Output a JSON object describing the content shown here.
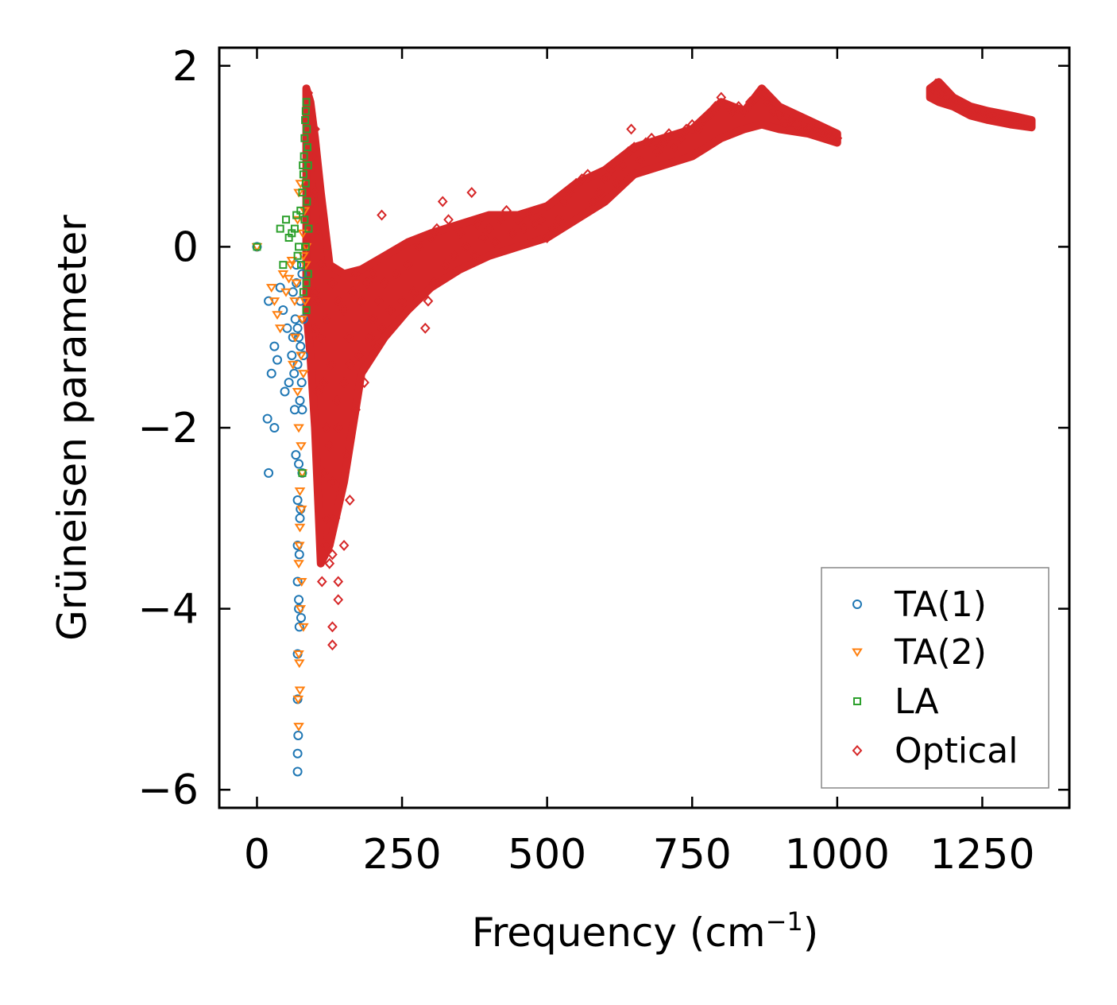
{
  "chart_data": {
    "type": "scatter",
    "title": "",
    "xlabel": "Frequency (cm",
    "xlabel_sup": "−1",
    "xlabel_close": ")",
    "ylabel": "Grüneisen parameter",
    "xlim": [
      -65,
      1400
    ],
    "ylim": [
      -6.2,
      2.2
    ],
    "xticks": [
      0,
      250,
      500,
      750,
      1000,
      1250
    ],
    "xtick_labels": [
      "0",
      "250",
      "500",
      "750",
      "1000",
      "1250"
    ],
    "yticks": [
      -6,
      -4,
      -2,
      0,
      2
    ],
    "ytick_labels": [
      "−6",
      "−4",
      "−2",
      "0",
      "2"
    ],
    "grid": false,
    "legend_position": "bottom-right",
    "series": [
      {
        "name": "TA(1)",
        "marker": "circle",
        "color": "#1f77b4",
        "points": [
          [
            0,
            0
          ],
          [
            20,
            -0.6
          ],
          [
            25,
            -1.4
          ],
          [
            30,
            -1.1
          ],
          [
            35,
            -1.25
          ],
          [
            40,
            -0.45
          ],
          [
            45,
            -0.7
          ],
          [
            48,
            -1.6
          ],
          [
            52,
            -0.9
          ],
          [
            55,
            -1.5
          ],
          [
            60,
            -1.2
          ],
          [
            62,
            -0.5
          ],
          [
            65,
            -1.8
          ],
          [
            67,
            -2.3
          ],
          [
            68,
            -0.2
          ],
          [
            70,
            -0.9
          ],
          [
            70,
            -1.3
          ],
          [
            70,
            -2.8
          ],
          [
            70,
            -3.3
          ],
          [
            70,
            -3.7
          ],
          [
            70,
            -4.5
          ],
          [
            70,
            -5.0
          ],
          [
            70,
            -5.6
          ],
          [
            70,
            -5.8
          ],
          [
            72,
            -1.0
          ],
          [
            72,
            -2.4
          ],
          [
            72,
            -4.0
          ],
          [
            73,
            -3.4
          ],
          [
            74,
            -1.7
          ],
          [
            75,
            -0.6
          ],
          [
            75,
            -1.1
          ],
          [
            75,
            -2.9
          ],
          [
            76,
            -4.1
          ],
          [
            77,
            -1.5
          ],
          [
            78,
            -0.3
          ],
          [
            78,
            -1.8
          ],
          [
            78,
            -2.5
          ],
          [
            80,
            -1.2
          ],
          [
            80,
            -0.8
          ],
          [
            18,
            -1.9
          ],
          [
            20,
            -2.5
          ],
          [
            30,
            -2.0
          ],
          [
            62,
            -1.0
          ],
          [
            64,
            -1.4
          ],
          [
            66,
            -0.8
          ],
          [
            68,
            -0.4
          ],
          [
            71,
            -5.4
          ],
          [
            72,
            -3.9
          ],
          [
            73,
            -4.2
          ],
          [
            74,
            -3.0
          ]
        ]
      },
      {
        "name": "TA(2)",
        "marker": "triangle",
        "color": "#ff7f0e",
        "points": [
          [
            0,
            0
          ],
          [
            25,
            -0.45
          ],
          [
            30,
            -0.6
          ],
          [
            35,
            -0.75
          ],
          [
            40,
            -0.9
          ],
          [
            45,
            -0.3
          ],
          [
            50,
            -0.5
          ],
          [
            55,
            -0.35
          ],
          [
            58,
            -0.2
          ],
          [
            60,
            -0.15
          ],
          [
            62,
            -1.3
          ],
          [
            65,
            -0.6
          ],
          [
            66,
            -1.0
          ],
          [
            68,
            -0.4
          ],
          [
            70,
            -1.6
          ],
          [
            70,
            0.3
          ],
          [
            72,
            -2.0
          ],
          [
            72,
            0.6
          ],
          [
            72,
            -3.5
          ],
          [
            72,
            -4.5
          ],
          [
            72,
            -5.3
          ],
          [
            73,
            -4.6
          ],
          [
            74,
            -2.7
          ],
          [
            74,
            -3.1
          ],
          [
            75,
            -4.0
          ],
          [
            75,
            0.7
          ],
          [
            76,
            -1.2
          ],
          [
            76,
            -2.2
          ],
          [
            77,
            -3.7
          ],
          [
            78,
            -0.8
          ],
          [
            78,
            -2.5
          ],
          [
            79,
            0.15
          ],
          [
            80,
            -1.4
          ],
          [
            80,
            -4.2
          ],
          [
            80,
            -0.1
          ],
          [
            82,
            0.4
          ],
          [
            83,
            -0.6
          ],
          [
            84,
            -0.2
          ],
          [
            85,
            0.0
          ],
          [
            71,
            -5.0
          ],
          [
            73,
            -3.3
          ],
          [
            74,
            -4.9
          ],
          [
            77,
            -2.9
          ]
        ]
      },
      {
        "name": "LA",
        "marker": "square",
        "color": "#2ca02c",
        "points": [
          [
            0,
            0
          ],
          [
            40,
            0.2
          ],
          [
            45,
            -0.2
          ],
          [
            50,
            0.3
          ],
          [
            55,
            0.1
          ],
          [
            60,
            0.15
          ],
          [
            65,
            0.2
          ],
          [
            68,
            0.35
          ],
          [
            70,
            -0.1
          ],
          [
            72,
            0.0
          ],
          [
            75,
            0.4
          ],
          [
            76,
            -0.2
          ],
          [
            78,
            0.6
          ],
          [
            78,
            -2.5
          ],
          [
            79,
            0.9
          ],
          [
            80,
            0.8
          ],
          [
            80,
            -0.5
          ],
          [
            81,
            1.0
          ],
          [
            82,
            1.2
          ],
          [
            82,
            0.3
          ],
          [
            83,
            1.4
          ],
          [
            84,
            1.5
          ],
          [
            84,
            0.7
          ],
          [
            85,
            1.6
          ],
          [
            85,
            -0.7
          ],
          [
            86,
            1.3
          ],
          [
            86,
            0.5
          ],
          [
            87,
            1.1
          ],
          [
            88,
            0.9
          ],
          [
            88,
            -0.3
          ],
          [
            89,
            0.2
          ],
          [
            85,
            -0.4
          ],
          [
            84,
            0.0
          ]
        ]
      },
      {
        "name": "Optical",
        "marker": "diamond",
        "color": "#d62728",
        "points": [
          [
            88,
            1.7
          ],
          [
            90,
            1.5
          ],
          [
            92,
            1.3
          ],
          [
            95,
            1.0
          ],
          [
            95,
            0.5
          ],
          [
            100,
            0.6
          ],
          [
            100,
            -0.5
          ],
          [
            100,
            -0.9
          ],
          [
            100,
            1.3
          ],
          [
            105,
            0.2
          ],
          [
            105,
            -0.6
          ],
          [
            105,
            -1.6
          ],
          [
            110,
            -0.2
          ],
          [
            110,
            -1.0
          ],
          [
            112,
            -3.7
          ],
          [
            115,
            -2.5
          ],
          [
            115,
            -1.5
          ],
          [
            118,
            -3.3
          ],
          [
            120,
            -3.0
          ],
          [
            120,
            -2.0
          ],
          [
            120,
            -0.8
          ],
          [
            125,
            -3.5
          ],
          [
            125,
            -2.2
          ],
          [
            128,
            -1.3
          ],
          [
            130,
            -4.4
          ],
          [
            130,
            -4.2
          ],
          [
            130,
            -3.4
          ],
          [
            130,
            -2.6
          ],
          [
            130,
            -0.4
          ],
          [
            135,
            -3.0
          ],
          [
            138,
            -1.7
          ],
          [
            140,
            -3.9
          ],
          [
            140,
            -3.7
          ],
          [
            140,
            -2.0
          ],
          [
            140,
            -0.6
          ],
          [
            145,
            -2.7
          ],
          [
            150,
            -3.3
          ],
          [
            150,
            -1.5
          ],
          [
            150,
            -0.7
          ],
          [
            155,
            -2.3
          ],
          [
            158,
            -1.0
          ],
          [
            160,
            -2.8
          ],
          [
            160,
            -1.3
          ],
          [
            165,
            -0.5
          ],
          [
            170,
            -1.8
          ],
          [
            170,
            -0.3
          ],
          [
            175,
            -1.2
          ],
          [
            180,
            -0.6
          ],
          [
            185,
            -1.5
          ],
          [
            190,
            -0.4
          ],
          [
            195,
            -1.0
          ],
          [
            200,
            -0.8
          ],
          [
            200,
            -0.3
          ],
          [
            205,
            -1.1
          ],
          [
            210,
            -0.6
          ],
          [
            215,
            0.35
          ],
          [
            215,
            -0.9
          ],
          [
            220,
            -0.4
          ],
          [
            230,
            -0.7
          ],
          [
            240,
            -0.3
          ],
          [
            250,
            -0.6
          ],
          [
            260,
            -0.2
          ],
          [
            270,
            -0.5
          ],
          [
            280,
            0.0
          ],
          [
            290,
            -0.9
          ],
          [
            295,
            -0.6
          ],
          [
            300,
            0.1
          ],
          [
            305,
            -0.4
          ],
          [
            310,
            0.2
          ],
          [
            320,
            0.5
          ],
          [
            325,
            -0.2
          ],
          [
            330,
            0.3
          ],
          [
            340,
            -0.1
          ],
          [
            350,
            0.15
          ],
          [
            360,
            0.0
          ],
          [
            370,
            0.6
          ],
          [
            375,
            -0.1
          ],
          [
            380,
            0.25
          ],
          [
            390,
            0.1
          ],
          [
            400,
            0.2
          ],
          [
            410,
            0.05
          ],
          [
            420,
            0.3
          ],
          [
            430,
            0.4
          ],
          [
            440,
            0.15
          ],
          [
            450,
            0.3
          ],
          [
            460,
            0.2
          ],
          [
            470,
            0.35
          ],
          [
            480,
            0.25
          ],
          [
            490,
            0.3
          ],
          [
            500,
            0.1
          ],
          [
            510,
            0.2
          ],
          [
            520,
            0.3
          ],
          [
            530,
            0.5
          ],
          [
            540,
            0.6
          ],
          [
            550,
            0.7
          ],
          [
            560,
            0.75
          ],
          [
            570,
            0.8
          ],
          [
            580,
            0.5
          ],
          [
            590,
            0.6
          ],
          [
            600,
            0.75
          ],
          [
            610,
            0.85
          ],
          [
            620,
            0.7
          ],
          [
            630,
            0.9
          ],
          [
            640,
            1.05
          ],
          [
            645,
            1.3
          ],
          [
            650,
            1.1
          ],
          [
            660,
            0.95
          ],
          [
            670,
            1.15
          ],
          [
            680,
            1.2
          ],
          [
            690,
            1.05
          ],
          [
            700,
            1.15
          ],
          [
            710,
            1.25
          ],
          [
            720,
            1.1
          ],
          [
            730,
            1.2
          ],
          [
            740,
            1.3
          ],
          [
            750,
            1.35
          ],
          [
            760,
            1.3
          ],
          [
            770,
            1.4
          ],
          [
            780,
            1.45
          ],
          [
            790,
            1.55
          ],
          [
            800,
            1.65
          ],
          [
            810,
            1.55
          ],
          [
            820,
            1.5
          ],
          [
            830,
            1.55
          ],
          [
            840,
            1.5
          ],
          [
            850,
            1.6
          ],
          [
            860,
            1.65
          ],
          [
            870,
            1.7
          ],
          [
            880,
            1.6
          ],
          [
            890,
            1.5
          ],
          [
            900,
            1.45
          ],
          [
            910,
            1.35
          ],
          [
            920,
            1.4
          ],
          [
            930,
            1.35
          ],
          [
            940,
            1.3
          ],
          [
            950,
            1.3
          ],
          [
            960,
            1.3
          ],
          [
            970,
            1.25
          ],
          [
            980,
            1.25
          ],
          [
            990,
            1.2
          ],
          [
            1000,
            1.2
          ],
          [
            1165,
            1.75
          ],
          [
            1170,
            1.8
          ],
          [
            1180,
            1.7
          ],
          [
            1190,
            1.65
          ],
          [
            1200,
            1.6
          ],
          [
            1210,
            1.6
          ],
          [
            1220,
            1.55
          ],
          [
            1230,
            1.5
          ],
          [
            1240,
            1.5
          ],
          [
            1250,
            1.5
          ],
          [
            1260,
            1.45
          ],
          [
            1270,
            1.45
          ],
          [
            1280,
            1.4
          ],
          [
            1290,
            1.4
          ],
          [
            1300,
            1.4
          ],
          [
            1310,
            1.38
          ],
          [
            1320,
            1.37
          ],
          [
            1330,
            1.36
          ]
        ],
        "bands": [
          {
            "x": [
              85,
              92,
              100,
              110,
              125,
              150,
              180,
              220,
              260,
              300,
              350,
              400,
              450,
              500,
              550,
              600,
              650,
              700,
              750,
              800,
              840,
              870,
              900,
              950,
              1000
            ],
            "upper": [
              1.75,
              1.6,
              1.2,
              0.6,
              -0.2,
              -0.3,
              -0.25,
              -0.1,
              0.05,
              0.15,
              0.25,
              0.35,
              0.35,
              0.45,
              0.7,
              0.85,
              1.1,
              1.2,
              1.3,
              1.6,
              1.5,
              1.75,
              1.55,
              1.4,
              1.25
            ],
            "lower": [
              -0.7,
              -1.2,
              -2.0,
              -3.5,
              -3.3,
              -2.6,
              -1.4,
              -1.0,
              -0.7,
              -0.45,
              -0.25,
              -0.1,
              0.0,
              0.1,
              0.3,
              0.5,
              0.8,
              0.9,
              1.0,
              1.2,
              1.3,
              1.35,
              1.3,
              1.25,
              1.15
            ]
          },
          {
            "x": [
              1160,
              1175,
              1200,
              1230,
              1260,
              1300,
              1335
            ],
            "upper": [
              1.75,
              1.82,
              1.65,
              1.55,
              1.5,
              1.45,
              1.4
            ],
            "lower": [
              1.65,
              1.6,
              1.55,
              1.45,
              1.4,
              1.35,
              1.32
            ]
          }
        ]
      }
    ]
  }
}
